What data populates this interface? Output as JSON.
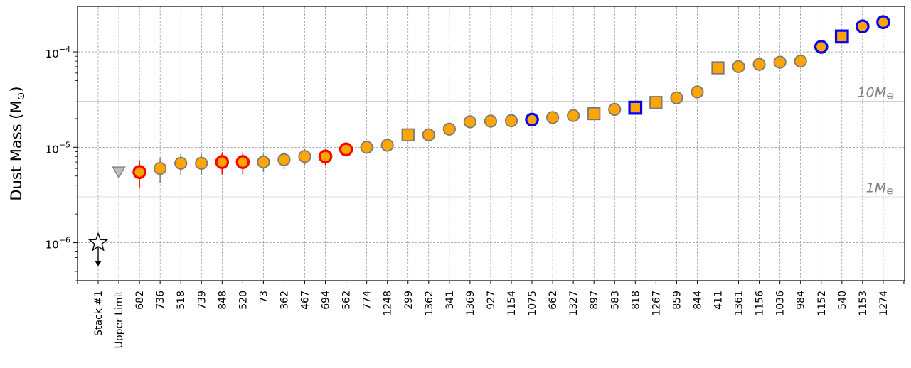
{
  "chart_data": {
    "type": "scatter",
    "ylabel_prefix": "Dust Mass (M",
    "ylabel_sub": "⊙",
    "ylabel_suffix": ")",
    "yscale": "log",
    "ylim": [
      4e-07,
      0.0003
    ],
    "grid": true,
    "y_ticks": [
      {
        "exp": "−6",
        "value": 1e-06
      },
      {
        "exp": "−5",
        "value": 1e-05
      },
      {
        "exp": "−4",
        "value": 0.0001
      }
    ],
    "reference_lines": [
      {
        "label": "1M",
        "sub": "⊕",
        "value": 3e-06
      },
      {
        "label": "10M",
        "sub": "⊕",
        "value": 3e-05
      }
    ],
    "categories": [
      "Stack #1",
      "Upper Limit",
      "682",
      "736",
      "518",
      "739",
      "848",
      "520",
      "73",
      "362",
      "467",
      "694",
      "562",
      "774",
      "1248",
      "299",
      "1362",
      "341",
      "1369",
      "927",
      "1154",
      "1075",
      "662",
      "1327",
      "897",
      "583",
      "818",
      "1267",
      "859",
      "844",
      "411",
      "1361",
      "1156",
      "1036",
      "984",
      "1152",
      "540",
      "1153",
      "1274"
    ],
    "points": [
      {
        "value": 1e-06,
        "marker": "star",
        "edge": "black",
        "upper_limit": true
      },
      {
        "value": 5.5e-06,
        "marker": "triangle",
        "edge": "gray"
      },
      {
        "value": 5.5e-06,
        "marker": "circle",
        "edge": "red",
        "err": [
          3.8e-06,
          7.3e-06
        ]
      },
      {
        "value": 6e-06,
        "marker": "circle",
        "edge": "gray",
        "err": [
          4.2e-06,
          7.8e-06
        ]
      },
      {
        "value": 6.8e-06,
        "marker": "circle",
        "edge": "gray",
        "err": [
          5.1e-06,
          8.5e-06
        ]
      },
      {
        "value": 6.8e-06,
        "marker": "circle",
        "edge": "gray",
        "err": [
          5.1e-06,
          8.5e-06
        ]
      },
      {
        "value": 7e-06,
        "marker": "circle",
        "edge": "red",
        "err": [
          5.2e-06,
          8.8e-06
        ]
      },
      {
        "value": 7e-06,
        "marker": "circle",
        "edge": "red",
        "err": [
          5.2e-06,
          8.8e-06
        ]
      },
      {
        "value": 7e-06,
        "marker": "circle",
        "edge": "gray",
        "err": [
          5.5e-06,
          8.5e-06
        ]
      },
      {
        "value": 7.4e-06,
        "marker": "circle",
        "edge": "gray",
        "err": [
          5.9e-06,
          8.9e-06
        ]
      },
      {
        "value": 8e-06,
        "marker": "circle",
        "edge": "gray",
        "err": [
          6.5e-06,
          9.5e-06
        ]
      },
      {
        "value": 8e-06,
        "marker": "circle",
        "edge": "red",
        "err": [
          6.5e-06,
          9.5e-06
        ]
      },
      {
        "value": 9.5e-06,
        "marker": "circle",
        "edge": "red",
        "err": [
          8e-06,
          1.1e-05
        ]
      },
      {
        "value": 1e-05,
        "marker": "circle",
        "edge": "gray",
        "err": [
          8.6e-06,
          1.15e-05
        ]
      },
      {
        "value": 1.05e-05,
        "marker": "circle",
        "edge": "gray",
        "err": [
          9e-06,
          1.2e-05
        ]
      },
      {
        "value": 1.35e-05,
        "marker": "square",
        "edge": "gray"
      },
      {
        "value": 1.35e-05,
        "marker": "circle",
        "edge": "gray"
      },
      {
        "value": 1.55e-05,
        "marker": "circle",
        "edge": "gray"
      },
      {
        "value": 1.85e-05,
        "marker": "circle",
        "edge": "gray"
      },
      {
        "value": 1.88e-05,
        "marker": "circle",
        "edge": "gray"
      },
      {
        "value": 1.9e-05,
        "marker": "circle",
        "edge": "gray"
      },
      {
        "value": 1.95e-05,
        "marker": "circle",
        "edge": "blue"
      },
      {
        "value": 2.05e-05,
        "marker": "circle",
        "edge": "gray"
      },
      {
        "value": 2.15e-05,
        "marker": "circle",
        "edge": "gray"
      },
      {
        "value": 2.25e-05,
        "marker": "square",
        "edge": "gray"
      },
      {
        "value": 2.5e-05,
        "marker": "circle",
        "edge": "gray"
      },
      {
        "value": 2.6e-05,
        "marker": "square",
        "edge": "blue"
      },
      {
        "value": 2.95e-05,
        "marker": "square",
        "edge": "gray"
      },
      {
        "value": 3.3e-05,
        "marker": "circle",
        "edge": "gray"
      },
      {
        "value": 3.8e-05,
        "marker": "circle",
        "edge": "gray"
      },
      {
        "value": 6.8e-05,
        "marker": "square",
        "edge": "gray"
      },
      {
        "value": 7e-05,
        "marker": "circle",
        "edge": "gray"
      },
      {
        "value": 7.4e-05,
        "marker": "circle",
        "edge": "gray"
      },
      {
        "value": 7.8e-05,
        "marker": "circle",
        "edge": "gray"
      },
      {
        "value": 8e-05,
        "marker": "circle",
        "edge": "gray"
      },
      {
        "value": 0.000113,
        "marker": "circle",
        "edge": "blue"
      },
      {
        "value": 0.000145,
        "marker": "square",
        "edge": "blue"
      },
      {
        "value": 0.000185,
        "marker": "circle",
        "edge": "blue"
      },
      {
        "value": 0.000205,
        "marker": "circle",
        "edge": "blue"
      }
    ],
    "colors": {
      "fill": "#FFA500",
      "edge_gray": "#7a7a7a",
      "edge_red": "#ff0000",
      "edge_blue": "#0000ff",
      "errorbar_red": "#ff0000",
      "errorbar_gray": "#7f7f7f",
      "reference_line": "#808080",
      "grid": "#808080"
    }
  }
}
